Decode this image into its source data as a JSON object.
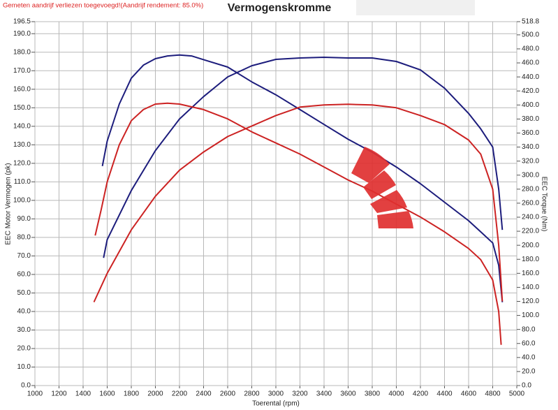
{
  "chart_data": {
    "type": "line",
    "title": "Vermogenskromme",
    "subtitle": "Gemeten aandrijf verliezen toegevoegd!(Aandrijf rendement: 85.0%)",
    "x_label": "Toerental (rpm)",
    "y_label": "EEC Motor Vermogen (pk)",
    "y2_label": "EEC Torque (Nm)",
    "xlim": [
      1000,
      5000
    ],
    "xticks": [
      1000,
      1200,
      1400,
      1600,
      1800,
      2000,
      2200,
      2400,
      2600,
      2800,
      3000,
      3200,
      3400,
      3600,
      3800,
      4000,
      4200,
      4400,
      4600,
      4800,
      5000
    ],
    "ylim": [
      0,
      196.5
    ],
    "yticks": [
      {
        "value": 0,
        "label": "0.0"
      },
      {
        "value": 10,
        "label": "10.0"
      },
      {
        "value": 20,
        "label": "20.0"
      },
      {
        "value": 30,
        "label": "30.0"
      },
      {
        "value": 40,
        "label": "40.0"
      },
      {
        "value": 50,
        "label": "50.0"
      },
      {
        "value": 60,
        "label": "60.0"
      },
      {
        "value": 70,
        "label": "70.0"
      },
      {
        "value": 80,
        "label": "80.0"
      },
      {
        "value": 90,
        "label": "90.0"
      },
      {
        "value": 100,
        "label": "100.0"
      },
      {
        "value": 110,
        "label": "110.0"
      },
      {
        "value": 120,
        "label": "120.0"
      },
      {
        "value": 130,
        "label": "130.0"
      },
      {
        "value": 140,
        "label": "140.0"
      },
      {
        "value": 150,
        "label": "150.0"
      },
      {
        "value": 160,
        "label": "160.0"
      },
      {
        "value": 170,
        "label": "170.0"
      },
      {
        "value": 180,
        "label": "180.0"
      },
      {
        "value": 190,
        "label": "190.0"
      },
      196.5
    ],
    "y2lim": [
      0,
      518.8
    ],
    "y2ticks": [
      {
        "value": 0,
        "label": "0.0"
      },
      {
        "value": 20,
        "label": "20.0"
      },
      {
        "value": 40,
        "label": "40.0"
      },
      {
        "value": 60,
        "label": "60.0"
      },
      {
        "value": 80,
        "label": "80.0"
      },
      {
        "value": 100,
        "label": "100.0"
      },
      {
        "value": 120,
        "label": "120.0"
      },
      {
        "value": 140,
        "label": "140.0"
      },
      {
        "value": 160,
        "label": "160.0"
      },
      {
        "value": 180,
        "label": "180.0"
      },
      {
        "value": 200,
        "label": "200.0"
      },
      {
        "value": 220,
        "label": "220.0"
      },
      {
        "value": 240,
        "label": "240.0"
      },
      {
        "value": 260,
        "label": "260.0"
      },
      {
        "value": 280,
        "label": "280.0"
      },
      {
        "value": 300,
        "label": "300.0"
      },
      {
        "value": 320,
        "label": "320.0"
      },
      {
        "value": 340,
        "label": "340.0"
      },
      {
        "value": 360,
        "label": "360.0"
      },
      {
        "value": 380,
        "label": "380.0"
      },
      {
        "value": 400,
        "label": "400.0"
      },
      {
        "value": 420,
        "label": "420.0"
      },
      {
        "value": 440,
        "label": "440.0"
      },
      {
        "value": 460,
        "label": "460.0"
      },
      {
        "value": 480,
        "label": "480.0"
      },
      {
        "value": 500,
        "label": "500.0"
      },
      518.8
    ],
    "grid": true,
    "series": [
      {
        "color": "#1c1c7c",
        "axis": "y",
        "x": [
          1560,
          1600,
          1700,
          1800,
          1900,
          2000,
          2100,
          2200,
          2300,
          2400,
          2600,
          2800,
          3000,
          3200,
          3400,
          3600,
          3800,
          4000,
          4200,
          4400,
          4600,
          4700,
          4800,
          4850,
          4880
        ],
        "values": [
          118.5,
          132,
          152,
          166,
          173,
          176.5,
          178,
          178.5,
          178,
          176,
          172,
          164,
          157,
          149,
          141,
          133,
          126,
          118,
          109,
          99,
          89,
          83,
          77,
          65,
          45
        ]
      },
      {
        "color": "#1c1c7c",
        "axis": "y2",
        "x": [
          1570,
          1600,
          1800,
          2000,
          2200,
          2400,
          2600,
          2800,
          3000,
          3200,
          3400,
          3600,
          3800,
          4000,
          4200,
          4400,
          4600,
          4700,
          4800,
          4850,
          4880
        ],
        "values": [
          182,
          208,
          278,
          335,
          380,
          412,
          440,
          456,
          465,
          467,
          468,
          467,
          467,
          462,
          450,
          424,
          388,
          366,
          340,
          280,
          222
        ]
      },
      {
        "color": "#cc2222",
        "axis": "y",
        "x": [
          1500,
          1550,
          1600,
          1700,
          1800,
          1900,
          2000,
          2100,
          2200,
          2400,
          2600,
          2800,
          3000,
          3200,
          3400,
          3600,
          3800,
          4000,
          4200,
          4400,
          4600,
          4700,
          4800,
          4850,
          4870
        ],
        "values": [
          81,
          95,
          110,
          130,
          143,
          149,
          152,
          152.5,
          152,
          149,
          144,
          137,
          131,
          125,
          118,
          111,
          105,
          98,
          91,
          83,
          74,
          68,
          57,
          40,
          22
        ]
      },
      {
        "color": "#cc2222",
        "axis": "y2",
        "x": [
          1490,
          1600,
          1800,
          2000,
          2200,
          2400,
          2600,
          2800,
          3000,
          3200,
          3400,
          3600,
          3800,
          4000,
          4200,
          4400,
          4600,
          4700,
          4800,
          4850,
          4880
        ],
        "values": [
          119,
          160,
          222,
          270,
          307,
          333,
          355,
          370,
          385,
          397,
          400,
          401,
          400,
          396,
          385,
          372,
          350,
          330,
          280,
          200,
          120
        ]
      }
    ]
  }
}
